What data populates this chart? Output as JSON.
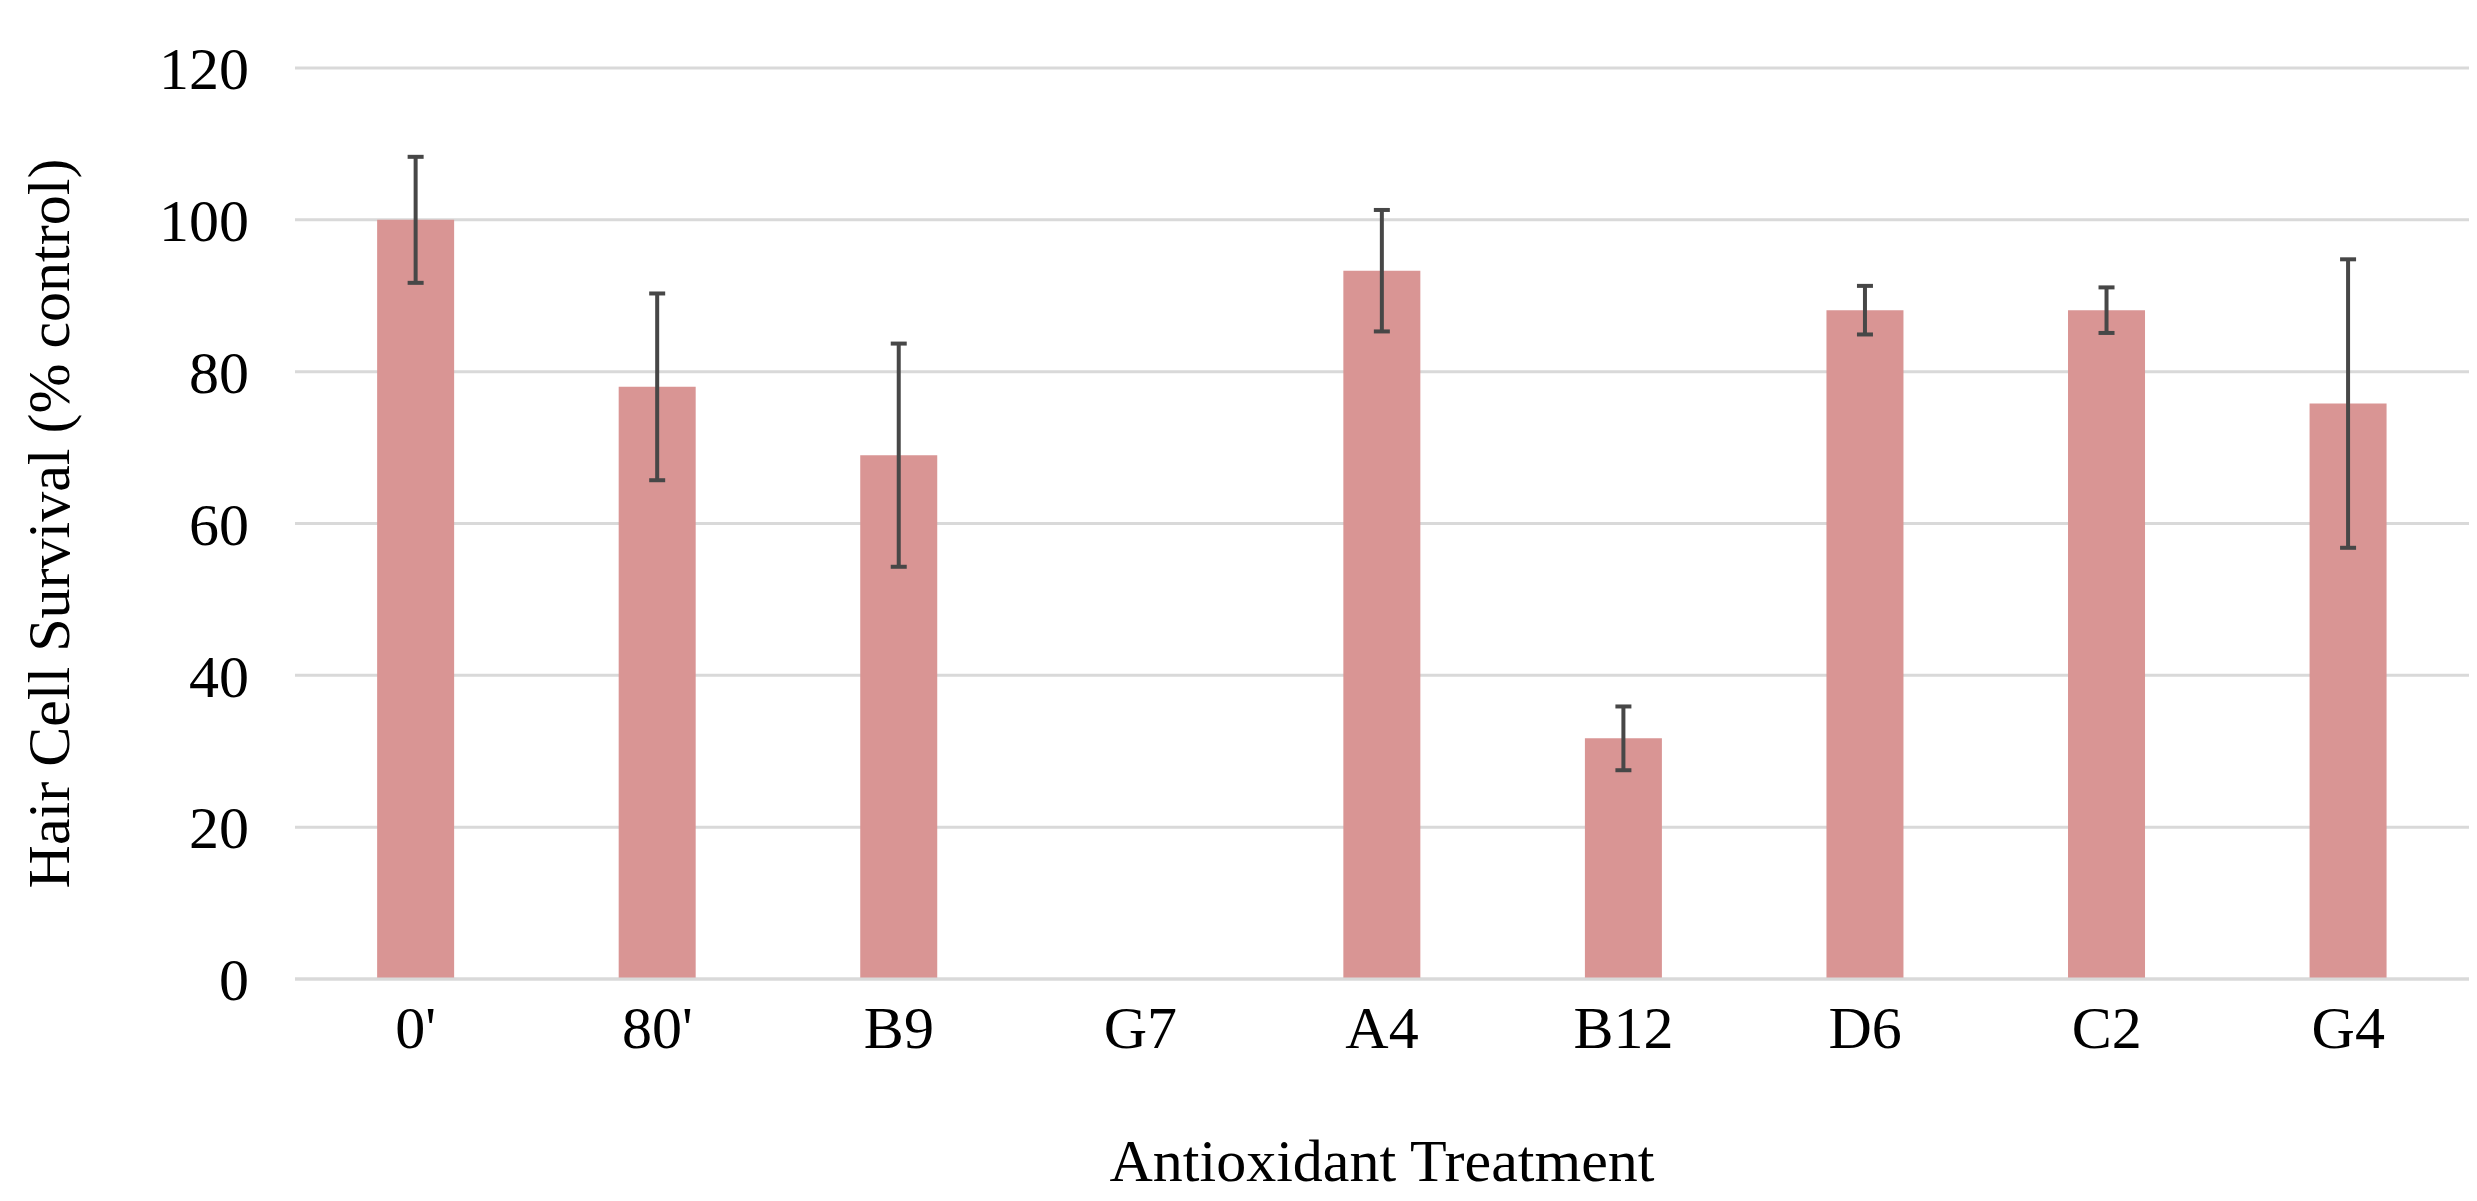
{
  "chart_data": {
    "type": "bar",
    "xlabel": "Antioxidant Treatment",
    "ylabel": "Hair Cell Survival (%  control)",
    "categories": [
      "0'",
      "80'",
      "B9",
      "G7",
      "A4",
      "B12",
      "D6",
      "C2",
      "G4"
    ],
    "values": [
      100,
      78,
      69,
      0,
      93.3,
      31.7,
      88.1,
      88.1,
      75.8
    ],
    "errors": [
      8.3,
      12.3,
      14.7,
      0,
      8,
      4.2,
      3.2,
      3,
      19
    ],
    "color": "#d99594",
    "ylim": [
      0,
      120
    ],
    "yticks": [
      0,
      20,
      40,
      60,
      80,
      100,
      120
    ],
    "grid": "y",
    "legend": false
  }
}
